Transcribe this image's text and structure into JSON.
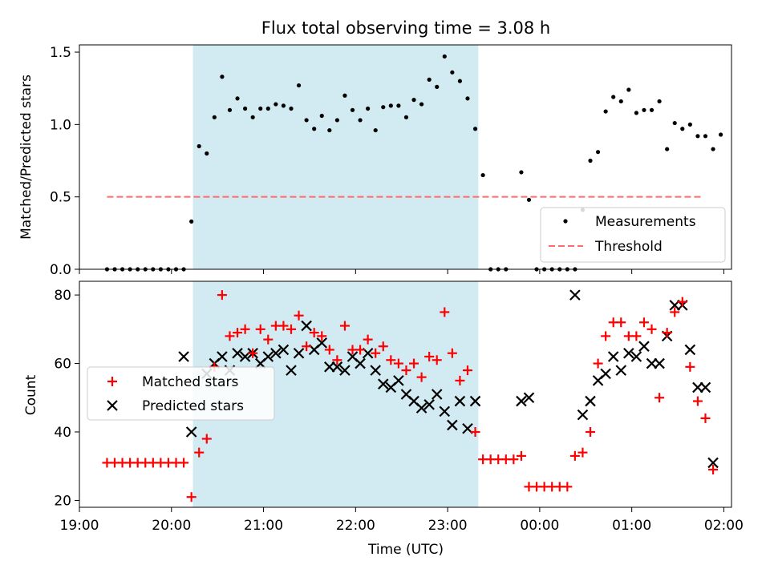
{
  "chart_data": [
    {
      "type": "scatter",
      "title": "Flux total observing time = 3.08 h",
      "ylabel": "Matched/Predicted stars",
      "xlim": [
        "19:00",
        "02:05"
      ],
      "ylim": [
        0,
        1.55
      ],
      "y_ticks": [
        "0.0",
        "0.5",
        "1.0",
        "1.5"
      ],
      "shaded_interval": {
        "start": "20:14",
        "end": "23:20",
        "color": "#add8e6"
      },
      "threshold": {
        "name": "Threshold",
        "value": 0.5,
        "x_start": "19:18",
        "x_end": "01:45",
        "color": "#ff6b6b"
      },
      "legend": {
        "position": "lower right",
        "entries": [
          "Measurements",
          "Threshold"
        ]
      },
      "series": [
        {
          "name": "Measurements",
          "marker": "dot",
          "color": "#000000",
          "points": [
            [
              "19:18",
              0
            ],
            [
              "19:23",
              0
            ],
            [
              "19:28",
              0
            ],
            [
              "19:33",
              0
            ],
            [
              "19:38",
              0
            ],
            [
              "19:43",
              0
            ],
            [
              "19:48",
              0
            ],
            [
              "19:53",
              0
            ],
            [
              "19:58",
              0
            ],
            [
              "20:03",
              0
            ],
            [
              "20:08",
              0
            ],
            [
              "20:13",
              0.33
            ],
            [
              "20:18",
              0.85
            ],
            [
              "20:23",
              0.8
            ],
            [
              "20:28",
              1.05
            ],
            [
              "20:33",
              1.33
            ],
            [
              "20:38",
              1.1
            ],
            [
              "20:43",
              1.18
            ],
            [
              "20:48",
              1.11
            ],
            [
              "20:53",
              1.05
            ],
            [
              "20:58",
              1.11
            ],
            [
              "21:03",
              1.11
            ],
            [
              "21:08",
              1.14
            ],
            [
              "21:13",
              1.13
            ],
            [
              "21:18",
              1.11
            ],
            [
              "21:23",
              1.27
            ],
            [
              "21:28",
              1.03
            ],
            [
              "21:33",
              0.97
            ],
            [
              "21:38",
              1.06
            ],
            [
              "21:43",
              0.96
            ],
            [
              "21:48",
              1.03
            ],
            [
              "21:53",
              1.2
            ],
            [
              "21:58",
              1.1
            ],
            [
              "22:03",
              1.03
            ],
            [
              "22:08",
              1.11
            ],
            [
              "22:13",
              0.96
            ],
            [
              "22:18",
              1.12
            ],
            [
              "22:23",
              1.13
            ],
            [
              "22:28",
              1.13
            ],
            [
              "22:33",
              1.05
            ],
            [
              "22:38",
              1.17
            ],
            [
              "22:43",
              1.14
            ],
            [
              "22:48",
              1.31
            ],
            [
              "22:53",
              1.26
            ],
            [
              "22:58",
              1.47
            ],
            [
              "23:03",
              1.36
            ],
            [
              "23:08",
              1.3
            ],
            [
              "23:13",
              1.18
            ],
            [
              "23:18",
              0.97
            ],
            [
              "23:23",
              0.65
            ],
            [
              "23:28",
              0
            ],
            [
              "23:33",
              0
            ],
            [
              "23:38",
              0
            ],
            [
              "23:48",
              0.67
            ],
            [
              "23:53",
              0.48
            ],
            [
              "23:58",
              0
            ],
            [
              "00:03",
              0
            ],
            [
              "00:08",
              0
            ],
            [
              "00:13",
              0
            ],
            [
              "00:18",
              0
            ],
            [
              "00:23",
              0
            ],
            [
              "00:28",
              0.41
            ],
            [
              "00:33",
              0.75
            ],
            [
              "00:38",
              0.81
            ],
            [
              "00:43",
              1.09
            ],
            [
              "00:48",
              1.19
            ],
            [
              "00:53",
              1.16
            ],
            [
              "00:58",
              1.24
            ],
            [
              "01:03",
              1.08
            ],
            [
              "01:08",
              1.1
            ],
            [
              "01:13",
              1.1
            ],
            [
              "01:18",
              1.16
            ],
            [
              "01:23",
              0.83
            ],
            [
              "01:28",
              1.01
            ],
            [
              "01:33",
              0.97
            ],
            [
              "01:38",
              1.0
            ],
            [
              "01:43",
              0.92
            ],
            [
              "01:48",
              0.92
            ],
            [
              "01:53",
              0.83
            ],
            [
              "01:58",
              0.93
            ]
          ]
        }
      ]
    },
    {
      "type": "scatter",
      "xlabel": "Time (UTC)",
      "ylabel": "Count",
      "xlim": [
        "19:00",
        "02:05"
      ],
      "ylim": [
        18,
        84
      ],
      "y_ticks": [
        "20",
        "40",
        "60",
        "80"
      ],
      "x_ticks": [
        "19:00",
        "20:00",
        "21:00",
        "22:00",
        "23:00",
        "00:00",
        "01:00",
        "02:00"
      ],
      "shaded_interval": {
        "start": "20:14",
        "end": "23:20",
        "color": "#add8e6"
      },
      "legend": {
        "position": "center left",
        "entries": [
          "Matched stars",
          "Predicted stars"
        ]
      },
      "series": [
        {
          "name": "Matched stars",
          "marker": "plus",
          "color": "#ff0000",
          "points": [
            [
              "19:18",
              31
            ],
            [
              "19:23",
              31
            ],
            [
              "19:28",
              31
            ],
            [
              "19:33",
              31
            ],
            [
              "19:38",
              31
            ],
            [
              "19:43",
              31
            ],
            [
              "19:48",
              31
            ],
            [
              "19:53",
              31
            ],
            [
              "19:58",
              31
            ],
            [
              "20:03",
              31
            ],
            [
              "20:08",
              31
            ],
            [
              "20:13",
              21
            ],
            [
              "20:18",
              34
            ],
            [
              "20:23",
              38
            ],
            [
              "20:28",
              59
            ],
            [
              "20:33",
              80
            ],
            [
              "20:38",
              68
            ],
            [
              "20:43",
              69
            ],
            [
              "20:48",
              70
            ],
            [
              "20:53",
              63
            ],
            [
              "20:58",
              70
            ],
            [
              "21:03",
              67
            ],
            [
              "21:08",
              71
            ],
            [
              "21:13",
              71
            ],
            [
              "21:18",
              70
            ],
            [
              "21:23",
              74
            ],
            [
              "21:28",
              65
            ],
            [
              "21:33",
              69
            ],
            [
              "21:38",
              68
            ],
            [
              "21:43",
              64
            ],
            [
              "21:48",
              61
            ],
            [
              "21:53",
              71
            ],
            [
              "21:58",
              64
            ],
            [
              "22:03",
              64
            ],
            [
              "22:08",
              67
            ],
            [
              "22:13",
              63
            ],
            [
              "22:18",
              65
            ],
            [
              "22:23",
              61
            ],
            [
              "22:28",
              60
            ],
            [
              "22:33",
              58
            ],
            [
              "22:38",
              60
            ],
            [
              "22:43",
              56
            ],
            [
              "22:48",
              62
            ],
            [
              "22:53",
              61
            ],
            [
              "22:58",
              75
            ],
            [
              "23:03",
              63
            ],
            [
              "23:08",
              55
            ],
            [
              "23:13",
              58
            ],
            [
              "23:18",
              40
            ],
            [
              "23:23",
              32
            ],
            [
              "23:28",
              32
            ],
            [
              "23:33",
              32
            ],
            [
              "23:38",
              32
            ],
            [
              "23:43",
              32
            ],
            [
              "23:48",
              33
            ],
            [
              "23:53",
              24
            ],
            [
              "23:58",
              24
            ],
            [
              "00:03",
              24
            ],
            [
              "00:08",
              24
            ],
            [
              "00:13",
              24
            ],
            [
              "00:18",
              24
            ],
            [
              "00:23",
              33
            ],
            [
              "00:28",
              34
            ],
            [
              "00:33",
              40
            ],
            [
              "00:38",
              60
            ],
            [
              "00:43",
              68
            ],
            [
              "00:48",
              72
            ],
            [
              "00:53",
              72
            ],
            [
              "00:58",
              68
            ],
            [
              "01:03",
              68
            ],
            [
              "01:08",
              72
            ],
            [
              "01:13",
              70
            ],
            [
              "01:18",
              50
            ],
            [
              "01:23",
              69
            ],
            [
              "01:28",
              75
            ],
            [
              "01:33",
              78
            ],
            [
              "01:38",
              59
            ],
            [
              "01:43",
              49
            ],
            [
              "01:48",
              44
            ],
            [
              "01:53",
              29
            ]
          ]
        },
        {
          "name": "Predicted stars",
          "marker": "x",
          "color": "#000000",
          "points": [
            [
              "20:08",
              62
            ],
            [
              "20:13",
              40
            ],
            [
              "20:23",
              57
            ],
            [
              "20:28",
              60
            ],
            [
              "20:33",
              62
            ],
            [
              "20:38",
              58
            ],
            [
              "20:43",
              63
            ],
            [
              "20:48",
              62
            ],
            [
              "20:53",
              63
            ],
            [
              "20:58",
              60
            ],
            [
              "21:03",
              62
            ],
            [
              "21:08",
              63
            ],
            [
              "21:13",
              64
            ],
            [
              "21:18",
              58
            ],
            [
              "21:23",
              63
            ],
            [
              "21:28",
              71
            ],
            [
              "21:33",
              64
            ],
            [
              "21:38",
              66
            ],
            [
              "21:43",
              59
            ],
            [
              "21:48",
              59
            ],
            [
              "21:53",
              58
            ],
            [
              "21:58",
              62
            ],
            [
              "22:03",
              60
            ],
            [
              "22:08",
              63
            ],
            [
              "22:13",
              58
            ],
            [
              "22:18",
              54
            ],
            [
              "22:23",
              53
            ],
            [
              "22:28",
              55
            ],
            [
              "22:33",
              51
            ],
            [
              "22:38",
              49
            ],
            [
              "22:43",
              47
            ],
            [
              "22:48",
              48
            ],
            [
              "22:53",
              51
            ],
            [
              "22:58",
              46
            ],
            [
              "23:03",
              42
            ],
            [
              "23:08",
              49
            ],
            [
              "23:13",
              41
            ],
            [
              "23:18",
              49
            ],
            [
              "23:48",
              49
            ],
            [
              "23:53",
              50
            ],
            [
              "00:23",
              80
            ],
            [
              "00:28",
              45
            ],
            [
              "00:33",
              49
            ],
            [
              "00:38",
              55
            ],
            [
              "00:43",
              57
            ],
            [
              "00:48",
              62
            ],
            [
              "00:53",
              58
            ],
            [
              "00:58",
              63
            ],
            [
              "01:03",
              62
            ],
            [
              "01:08",
              65
            ],
            [
              "01:13",
              60
            ],
            [
              "01:18",
              60
            ],
            [
              "01:23",
              68
            ],
            [
              "01:28",
              77
            ],
            [
              "01:33",
              77
            ],
            [
              "01:38",
              64
            ],
            [
              "01:43",
              53
            ],
            [
              "01:48",
              53
            ],
            [
              "01:53",
              31
            ]
          ]
        }
      ]
    }
  ]
}
